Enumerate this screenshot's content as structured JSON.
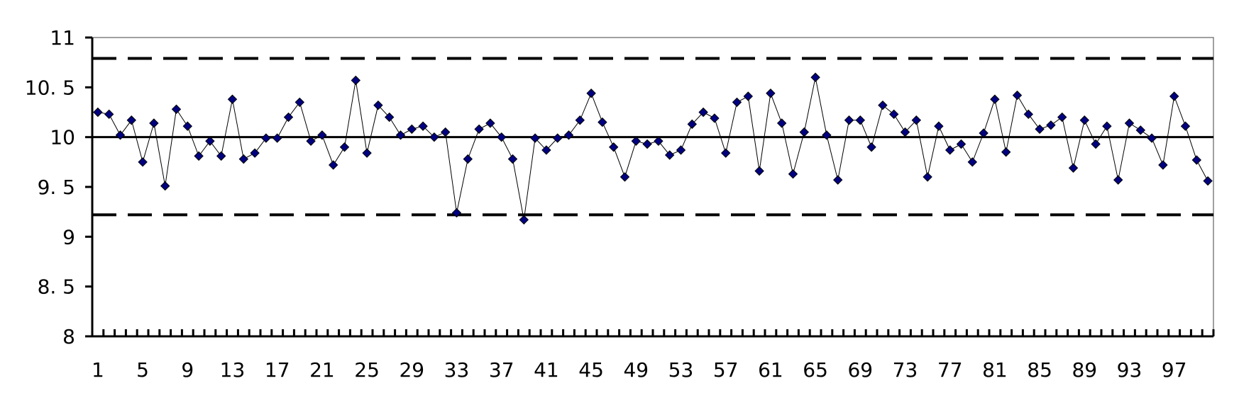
{
  "chart_data": {
    "type": "line",
    "title": "",
    "xlabel": "",
    "ylabel": "",
    "ylim": [
      8,
      11
    ],
    "xlim": [
      1,
      100
    ],
    "y_ticks": [
      8,
      8.5,
      9,
      9.5,
      10,
      10.5,
      11
    ],
    "y_tick_labels": [
      "8",
      "8. 5",
      "9",
      "9. 5",
      "10",
      "10. 5",
      "11"
    ],
    "x_tick_labels": [
      "1",
      "5",
      "9",
      "13",
      "17",
      "21",
      "25",
      "29",
      "33",
      "37",
      "41",
      "45",
      "49",
      "53",
      "57",
      "61",
      "65",
      "69",
      "73",
      "77",
      "81",
      "85",
      "89",
      "93",
      "97"
    ],
    "grid": false,
    "legend": "none",
    "reference_lines": [
      {
        "y": 10.79,
        "style": "dashed"
      },
      {
        "y": 10.0,
        "style": "solid"
      },
      {
        "y": 9.22,
        "style": "dashed"
      }
    ],
    "series": [
      {
        "color": "#000080",
        "values": [
          10.25,
          10.23,
          10.02,
          10.17,
          9.75,
          10.14,
          9.51,
          10.28,
          10.11,
          9.81,
          9.96,
          9.81,
          10.38,
          9.78,
          9.84,
          9.99,
          9.99,
          10.2,
          10.35,
          9.96,
          10.02,
          9.72,
          9.9,
          10.57,
          9.84,
          10.32,
          10.2,
          10.02,
          10.08,
          10.11,
          10.0,
          10.05,
          9.24,
          9.78,
          10.08,
          10.14,
          10.0,
          9.78,
          9.17,
          9.99,
          9.87,
          9.99,
          10.02,
          10.17,
          10.44,
          10.15,
          9.9,
          9.6,
          9.96,
          9.93,
          9.96,
          9.82,
          9.87,
          10.13,
          10.25,
          10.19,
          9.84,
          10.35,
          10.41,
          9.66,
          10.44,
          10.14,
          9.63,
          10.05,
          10.6,
          10.02,
          9.57,
          10.17,
          10.17,
          9.9,
          10.32,
          10.23,
          10.05,
          10.17,
          9.6,
          10.11,
          9.87,
          9.93,
          9.75,
          10.04,
          10.38,
          9.85,
          10.42,
          10.23,
          10.08,
          10.12,
          10.2,
          9.69,
          10.17,
          9.93,
          10.11,
          9.57,
          10.14,
          10.07,
          9.99,
          9.72,
          10.41,
          10.11,
          9.77,
          9.56
        ]
      }
    ],
    "colors": {
      "axis": "#000000",
      "line": "#000000",
      "marker": "#000080",
      "background": "#ffffff"
    }
  }
}
